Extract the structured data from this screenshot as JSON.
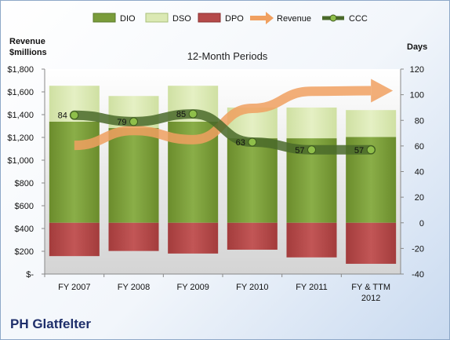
{
  "chart_data": {
    "type": "bar",
    "title": "12-Month Periods",
    "company": "PH Glatfelter",
    "y_left_label_line1": "Revenue",
    "y_left_label_line2": "$millions",
    "y_right_label": "Days",
    "left_axis": {
      "range": [
        0,
        1800
      ],
      "ticks": [
        0,
        200,
        400,
        600,
        800,
        1000,
        1200,
        1400,
        1600,
        1800
      ],
      "tick_labels": [
        "$-",
        "$200",
        "$400",
        "$600",
        "$800",
        "$1,000",
        "$1,200",
        "$1,400",
        "$1,600",
        "$1,800"
      ]
    },
    "right_axis": {
      "range": [
        -40,
        120
      ],
      "ticks": [
        -40,
        -20,
        0,
        20,
        40,
        60,
        80,
        100,
        120
      ],
      "tick_labels": [
        "-40",
        "-20",
        "0",
        "20",
        "40",
        "60",
        "80",
        "100",
        "120"
      ]
    },
    "categories": [
      "FY 2007",
      "FY 2008",
      "FY 2009",
      "FY 2010",
      "FY 2011",
      "FY & TTM 2012"
    ],
    "series": [
      {
        "name": "DIO",
        "type": "stacked-bar",
        "axis": "right",
        "color": "#7a9c3a",
        "values": [
          79,
          74,
          79,
          66,
          66,
          67
        ]
      },
      {
        "name": "DSO",
        "type": "stacked-bar",
        "axis": "right",
        "color": "#dbe9b3",
        "values": [
          28,
          25,
          28,
          24,
          24,
          21
        ]
      },
      {
        "name": "DPO",
        "type": "stacked-bar-negative",
        "axis": "right",
        "color": "#b54a4a",
        "values": [
          -26,
          -22,
          -24,
          -21,
          -27,
          -32
        ]
      },
      {
        "name": "Revenue",
        "type": "arrow-line",
        "axis": "left",
        "color": "#f0a060",
        "values": [
          1130,
          1260,
          1180,
          1455,
          1605,
          1610
        ]
      },
      {
        "name": "CCC",
        "type": "line",
        "axis": "right",
        "color": "#4a6a2a",
        "values": [
          84,
          79,
          85,
          63,
          57,
          57
        ]
      }
    ],
    "data_labels": [
      "84",
      "79",
      "85",
      "63",
      "57",
      "57"
    ],
    "legend_position": "top"
  }
}
